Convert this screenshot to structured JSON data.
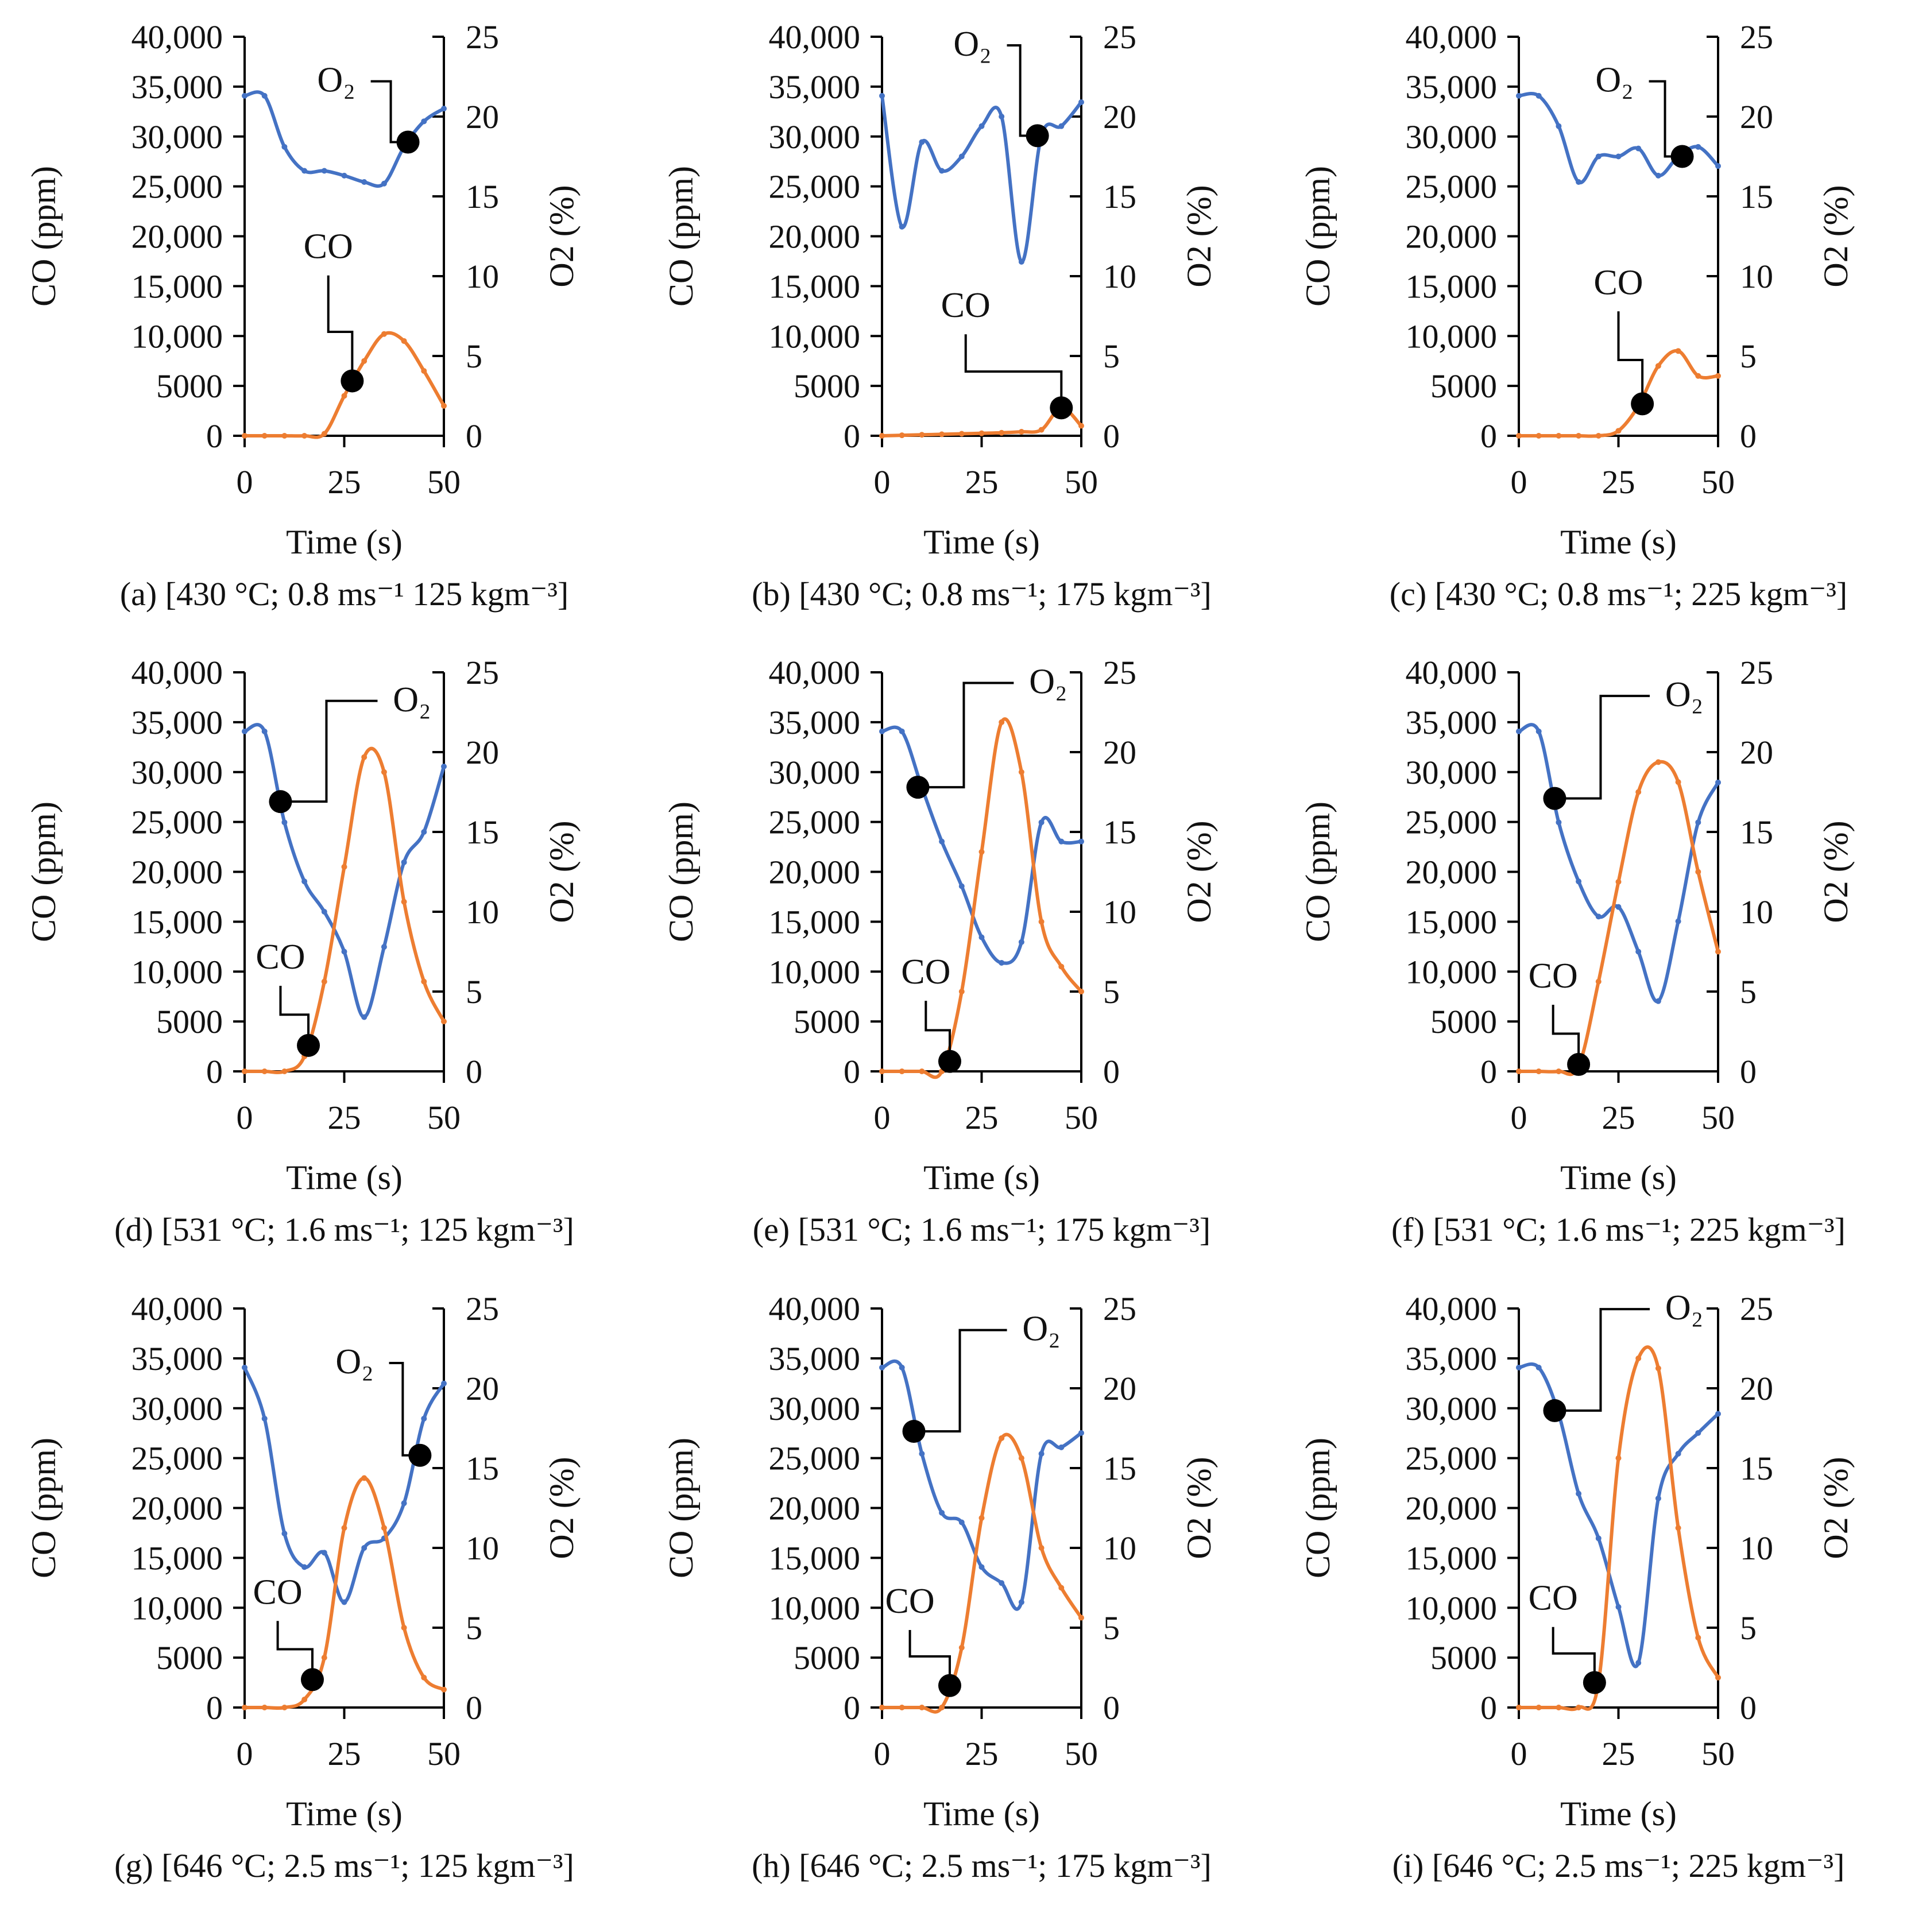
{
  "chart_data": [
    {
      "id": "a",
      "type": "line",
      "caption": "(a) [430 °C; 0.8 ms⁻¹ 125 kgm⁻³]",
      "x": [
        0,
        5,
        10,
        15,
        20,
        25,
        30,
        35,
        40,
        45,
        50
      ],
      "series": [
        {
          "name": "O₂",
          "axis": "right",
          "color": "#4472C4",
          "values": [
            21.3,
            21.3,
            18.1,
            16.6,
            16.6,
            16.3,
            15.9,
            15.8,
            18.1,
            19.7,
            20.5
          ]
        },
        {
          "name": "CO",
          "axis": "left",
          "color": "#ED7D31",
          "values": [
            0,
            0,
            0,
            0,
            200,
            4000,
            7500,
            10200,
            9500,
            6500,
            3000
          ]
        }
      ],
      "markers": {
        "O2": {
          "t": 41,
          "v": 18.4
        },
        "CO": {
          "t": 27,
          "v": 5500
        }
      }
    },
    {
      "id": "b",
      "type": "line",
      "caption": "(b) [430 °C; 0.8 ms⁻¹; 175 kgm⁻³]",
      "x": [
        0,
        5,
        10,
        15,
        20,
        25,
        30,
        35,
        40,
        45,
        50
      ],
      "series": [
        {
          "name": "O₂",
          "axis": "right",
          "color": "#4472C4",
          "values": [
            21.3,
            13.1,
            18.4,
            16.6,
            17.5,
            19.4,
            20.0,
            10.9,
            18.8,
            19.4,
            20.9
          ]
        },
        {
          "name": "CO",
          "axis": "left",
          "color": "#ED7D31",
          "values": [
            0,
            50,
            100,
            150,
            200,
            250,
            300,
            400,
            600,
            2800,
            1000
          ]
        }
      ],
      "markers": {
        "O2": {
          "t": 39,
          "v": 18.8
        },
        "CO": {
          "t": 45,
          "v": 2800
        }
      }
    },
    {
      "id": "c",
      "type": "line",
      "caption": "(c) [430 °C; 0.8 ms⁻¹; 225 kgm⁻³]",
      "x": [
        0,
        5,
        10,
        15,
        20,
        25,
        30,
        35,
        40,
        45,
        50
      ],
      "series": [
        {
          "name": "O₂",
          "axis": "right",
          "color": "#4472C4",
          "values": [
            21.3,
            21.3,
            19.4,
            15.9,
            17.5,
            17.5,
            18.0,
            16.3,
            17.5,
            18.1,
            16.9
          ]
        },
        {
          "name": "CO",
          "axis": "left",
          "color": "#ED7D31",
          "values": [
            0,
            0,
            0,
            0,
            0,
            500,
            3000,
            7000,
            8500,
            6000,
            6000
          ]
        }
      ],
      "markers": {
        "O2": {
          "t": 41,
          "v": 17.5
        },
        "CO": {
          "t": 31,
          "v": 3200
        }
      }
    },
    {
      "id": "d",
      "type": "line",
      "caption": "(d) [531 °C; 1.6 ms⁻¹; 125 kgm⁻³]",
      "x": [
        0,
        5,
        10,
        15,
        20,
        25,
        30,
        35,
        40,
        45,
        50
      ],
      "series": [
        {
          "name": "O₂",
          "axis": "right",
          "color": "#4472C4",
          "values": [
            21.3,
            21.3,
            15.6,
            11.9,
            10.0,
            7.5,
            3.4,
            7.8,
            13.1,
            15.0,
            19.1
          ]
        },
        {
          "name": "CO",
          "axis": "left",
          "color": "#ED7D31",
          "values": [
            0,
            0,
            0,
            1500,
            9000,
            20500,
            31500,
            30000,
            17000,
            9000,
            5000
          ]
        }
      ],
      "markers": {
        "O2": {
          "t": 9,
          "v": 16.9
        },
        "CO": {
          "t": 16,
          "v": 2600
        }
      }
    },
    {
      "id": "e",
      "type": "line",
      "caption": "(e) [531 °C; 1.6 ms⁻¹; 175 kgm⁻³]",
      "x": [
        0,
        5,
        10,
        15,
        20,
        25,
        30,
        35,
        40,
        45,
        50
      ],
      "series": [
        {
          "name": "O₂",
          "axis": "right",
          "color": "#4472C4",
          "values": [
            21.3,
            21.3,
            17.8,
            14.4,
            11.6,
            8.4,
            6.8,
            8.1,
            15.6,
            14.4,
            14.4
          ]
        },
        {
          "name": "CO",
          "axis": "left",
          "color": "#ED7D31",
          "values": [
            0,
            0,
            0,
            0,
            8000,
            22000,
            35000,
            30000,
            15000,
            10500,
            8000
          ]
        }
      ],
      "markers": {
        "O2": {
          "t": 9,
          "v": 17.8
        },
        "CO": {
          "t": 17,
          "v": 1000
        }
      }
    },
    {
      "id": "f",
      "type": "line",
      "caption": "(f) [531 °C; 1.6 ms⁻¹; 225 kgm⁻³]",
      "x": [
        0,
        5,
        10,
        15,
        20,
        25,
        30,
        35,
        40,
        45,
        50
      ],
      "series": [
        {
          "name": "O₂",
          "axis": "right",
          "color": "#4472C4",
          "values": [
            21.3,
            21.3,
            15.6,
            11.9,
            9.7,
            10.3,
            7.5,
            4.4,
            9.4,
            15.6,
            18.1
          ]
        },
        {
          "name": "CO",
          "axis": "left",
          "color": "#ED7D31",
          "values": [
            0,
            0,
            0,
            500,
            9000,
            19000,
            28000,
            31000,
            29000,
            20000,
            12000
          ]
        }
      ],
      "markers": {
        "O2": {
          "t": 9,
          "v": 17.1
        },
        "CO": {
          "t": 15,
          "v": 700
        }
      }
    },
    {
      "id": "g",
      "type": "line",
      "caption": "(g) [646 °C; 2.5 ms⁻¹; 125 kgm⁻³]",
      "x": [
        0,
        5,
        10,
        15,
        20,
        25,
        30,
        35,
        40,
        45,
        50
      ],
      "series": [
        {
          "name": "O₂",
          "axis": "right",
          "color": "#4472C4",
          "values": [
            21.3,
            18.1,
            10.9,
            8.8,
            9.7,
            6.6,
            10.0,
            10.6,
            12.8,
            18.1,
            20.3
          ]
        },
        {
          "name": "CO",
          "axis": "left",
          "color": "#ED7D31",
          "values": [
            0,
            0,
            0,
            800,
            5000,
            18000,
            23000,
            18000,
            8000,
            3000,
            1800
          ]
        }
      ],
      "markers": {
        "O2": {
          "t": 44,
          "v": 15.8
        },
        "CO": {
          "t": 17,
          "v": 2800
        }
      }
    },
    {
      "id": "h",
      "type": "line",
      "caption": "(h) [646 °C; 2.5 ms⁻¹; 175 kgm⁻³]",
      "x": [
        0,
        5,
        10,
        15,
        20,
        25,
        30,
        35,
        40,
        45,
        50
      ],
      "series": [
        {
          "name": "O₂",
          "axis": "right",
          "color": "#4472C4",
          "values": [
            21.3,
            21.3,
            15.9,
            12.2,
            11.6,
            8.8,
            7.8,
            6.6,
            15.9,
            16.3,
            17.2
          ]
        },
        {
          "name": "CO",
          "axis": "left",
          "color": "#ED7D31",
          "values": [
            0,
            0,
            0,
            0,
            6000,
            19000,
            27000,
            25000,
            16000,
            12000,
            9000
          ]
        }
      ],
      "markers": {
        "O2": {
          "t": 8,
          "v": 17.3
        },
        "CO": {
          "t": 17,
          "v": 2200
        }
      }
    },
    {
      "id": "i",
      "type": "line",
      "caption": "(i) [646 °C; 2.5 ms⁻¹; 225 kgm⁻³]",
      "x": [
        0,
        5,
        10,
        15,
        20,
        25,
        30,
        35,
        40,
        45,
        50
      ],
      "series": [
        {
          "name": "O₂",
          "axis": "right",
          "color": "#4472C4",
          "values": [
            21.3,
            21.3,
            18.4,
            13.4,
            10.6,
            6.3,
            2.8,
            13.1,
            15.9,
            17.2,
            18.4
          ]
        },
        {
          "name": "CO",
          "axis": "left",
          "color": "#ED7D31",
          "values": [
            0,
            0,
            0,
            0,
            2500,
            25000,
            35000,
            34000,
            18000,
            7000,
            3000
          ]
        }
      ],
      "markers": {
        "O2": {
          "t": 9,
          "v": 18.6
        },
        "CO": {
          "t": 19,
          "v": 2500
        }
      }
    }
  ],
  "axes": {
    "xlabel": "Time (s)",
    "ylabel_left": "CO (ppm)",
    "ylabel_right": "O2 (%)",
    "xlim": [
      0,
      50
    ],
    "ylim_left": [
      0,
      40000
    ],
    "ylim_right": [
      0,
      25
    ],
    "xticks": [
      "0",
      "25",
      "50"
    ],
    "yticks_left": [
      "0",
      "5000",
      "10,000",
      "15,000",
      "20,000",
      "25,000",
      "30,000",
      "35,000",
      "40,000"
    ],
    "yticks_right": [
      "0",
      "5",
      "10",
      "15",
      "20",
      "25"
    ]
  },
  "annotations": {
    "o2_label": "O₂",
    "co_label": "CO"
  }
}
